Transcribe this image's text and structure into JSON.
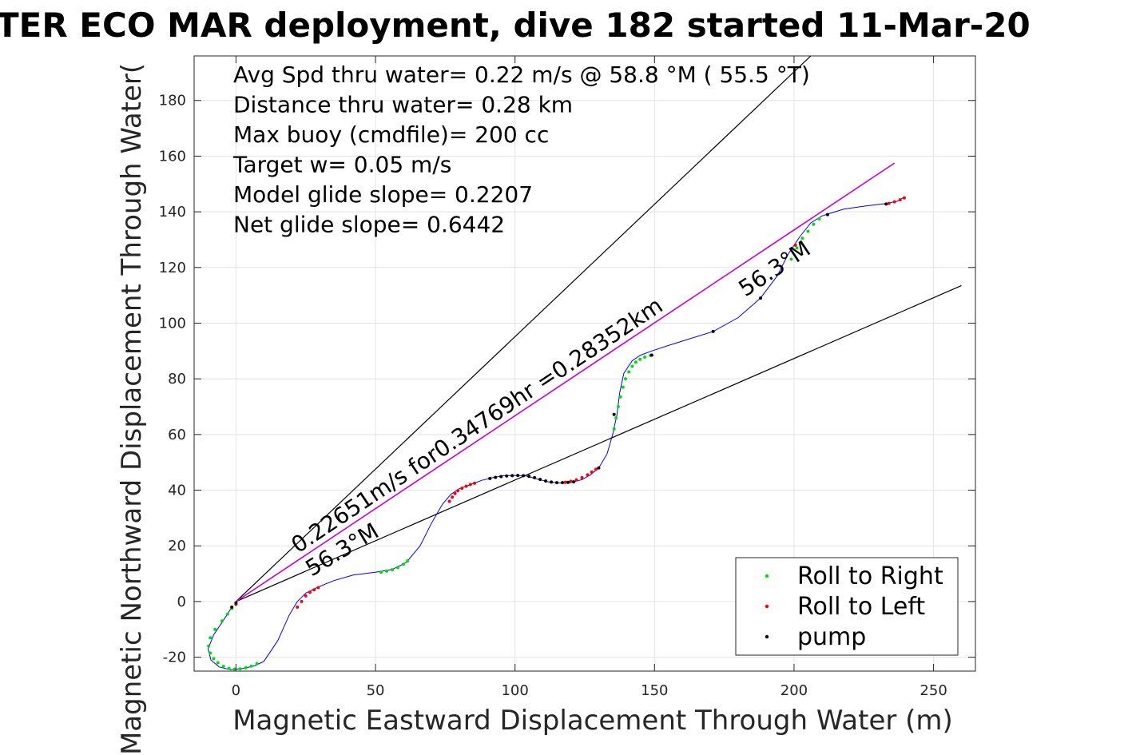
{
  "chart_data": {
    "type": "line",
    "title": "TER ECO MAR deployment, dive 182 started 11-Mar-20",
    "xlabel": "Magnetic Eastward Displacement Through Water (m)",
    "ylabel": "Magnetic Northward Displacement Through Water(",
    "xlim": [
      -15,
      265
    ],
    "ylim": [
      -25,
      196
    ],
    "xticks": [
      0,
      50,
      100,
      150,
      200,
      250
    ],
    "yticks": [
      -20,
      0,
      20,
      40,
      60,
      80,
      100,
      120,
      140,
      160,
      180
    ],
    "grid": true,
    "legend_position": "bottom-right",
    "info_lines": [
      "Avg Spd thru water=  0.22 m/s @  58.8 °M ( 55.5 °T)",
      "Distance thru water=  0.28 km",
      "Max buoy (cmdfile)= 200 cc",
      "Target w= 0.05 m/s",
      "Model glide slope= 0.2207",
      "Net glide slope= 0.6442"
    ],
    "annotations": {
      "speed_label": "0.22651m/s for0.34769hr =0.28352km",
      "heading_label_lower": "56.3°M",
      "heading_label_upper": "56.3°M"
    },
    "colors": {
      "track": "#0000ff",
      "heading_line": "#cc00cc",
      "roll_right": "#00dd00",
      "roll_left": "#ff0000",
      "pump": "#000000",
      "bounds": "#000000"
    },
    "track": {
      "x": [
        -1.5,
        -4,
        -8,
        -10,
        -9,
        -6,
        -2,
        3,
        7,
        10,
        15,
        19,
        22,
        25,
        29,
        35,
        42,
        50,
        56,
        61,
        66,
        70,
        74,
        77,
        80,
        84,
        88,
        92,
        96,
        100,
        104,
        108,
        112,
        116,
        120,
        124,
        127,
        130,
        133,
        135,
        136.5,
        137.5,
        139,
        142,
        145,
        149,
        155,
        163,
        171,
        180,
        188,
        194,
        198,
        202,
        206,
        210,
        213,
        218,
        225,
        233,
        237,
        239
      ],
      "y": [
        -2,
        -6,
        -12,
        -17,
        -21,
        -23.5,
        -24.5,
        -24,
        -23,
        -21.5,
        -14,
        -5,
        0,
        3,
        5,
        7.5,
        9.5,
        10.5,
        11.5,
        14,
        20,
        28,
        35,
        38.5,
        40.5,
        42,
        43.5,
        44.5,
        45.2,
        45.3,
        45.1,
        44,
        43,
        42.6,
        42.7,
        43.8,
        45.5,
        48,
        53,
        60,
        67,
        75,
        82,
        86.5,
        88.5,
        90,
        92,
        94.5,
        97,
        102,
        109,
        117,
        125,
        131,
        136,
        138.5,
        139.5,
        141,
        142,
        143,
        143.8,
        145
      ]
    },
    "roll_right_points": {
      "x": [
        -1.5,
        -3,
        -5,
        -7.5,
        -9.2,
        -9.8,
        -9.2,
        -8,
        -6.5,
        -4.5,
        -2.5,
        -0.5,
        1.5,
        3.5,
        5.5,
        7.5,
        52,
        54,
        56,
        58,
        60,
        61.5,
        135.5,
        136.2,
        137,
        137.8,
        138.7,
        139.6,
        140.8,
        142,
        143.3,
        144.8,
        146.5,
        148.5,
        199,
        201,
        203,
        205,
        207,
        209
      ],
      "y": [
        -2.5,
        -4.5,
        -7,
        -10,
        -13,
        -16,
        -18.5,
        -20.5,
        -22,
        -23.3,
        -24,
        -24.3,
        -24.2,
        -23.8,
        -23.2,
        -22.3,
        10.5,
        10.9,
        11.4,
        12.2,
        13.4,
        14.6,
        62,
        66,
        70,
        73.5,
        77,
        80,
        82.5,
        84.5,
        86,
        87,
        87.8,
        88.4,
        123,
        127,
        130.5,
        133,
        135.5,
        137.5
      ]
    },
    "roll_left_points": {
      "x": [
        0,
        22,
        23.5,
        25,
        26.5,
        28,
        29.5,
        76.5,
        77.5,
        78.5,
        79.5,
        81,
        82.5,
        84,
        85.5,
        118,
        120,
        122,
        124,
        126,
        127.5,
        129,
        234,
        236,
        238,
        239.5,
        200.5
      ],
      "y": [
        -1,
        -2,
        0,
        2,
        3.3,
        4.2,
        5,
        36,
        37.5,
        38.8,
        39.8,
        40.7,
        41.4,
        42,
        42.5,
        42.8,
        43.2,
        43.7,
        44.5,
        45.5,
        46.5,
        47.5,
        143,
        143.6,
        144.3,
        145,
        128
      ]
    },
    "pump_points": {
      "x": [
        -1.5,
        0,
        91,
        93,
        95,
        97,
        99,
        101,
        103,
        105,
        107,
        109,
        111,
        113,
        115,
        117,
        119,
        121,
        130,
        135.5,
        149,
        171,
        188,
        212,
        233
      ],
      "y": [
        -2,
        -0.5,
        44.2,
        44.6,
        44.9,
        45.1,
        45.2,
        45.3,
        45.2,
        45.0,
        44.5,
        43.9,
        43.3,
        42.9,
        42.7,
        42.7,
        42.8,
        43.0,
        48.0,
        67.2,
        88.5,
        97.0,
        109.0,
        139.0,
        142.8
      ]
    },
    "heading_line": {
      "x": [
        0,
        236
      ],
      "y": [
        0,
        157.5
      ]
    },
    "bound_upper": {
      "x": [
        0,
        206
      ],
      "y": [
        0,
        196
      ]
    },
    "bound_lower": {
      "x": [
        0,
        260
      ],
      "y": [
        0,
        113.5
      ]
    },
    "legend": [
      {
        "label": "Roll to Right",
        "color": "#00dd00"
      },
      {
        "label": "Roll to Left",
        "color": "#ff0000"
      },
      {
        "label": "pump",
        "color": "#000000"
      }
    ]
  }
}
